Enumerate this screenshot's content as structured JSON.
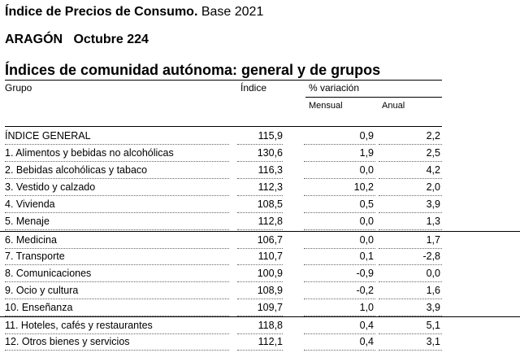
{
  "header": {
    "title_bold": "Índice de Precios de Consumo.",
    "title_rest": "Base 2021",
    "region": "ARAGÓN",
    "period": "Octubre 224",
    "subtitle": "Índices de comunidad autónoma: general y de grupos"
  },
  "columns": {
    "group": "Grupo",
    "index": "Índice",
    "variation": "% variación",
    "monthly": "Mensual",
    "annual": "Anual"
  },
  "rows": [
    {
      "name": "ÍNDICE GENERAL",
      "index": "115,9",
      "monthly": "0,9",
      "annual": "2,2"
    },
    {
      "name": "1. Alimentos y bebidas no alcohólicas",
      "index": "130,6",
      "monthly": "1,9",
      "annual": "2,5"
    },
    {
      "name": "2. Bebidas alcohólicas y tabaco",
      "index": "116,3",
      "monthly": "0,0",
      "annual": "4,2"
    },
    {
      "name": "3. Vestido y calzado",
      "index": "112,3",
      "monthly": "10,2",
      "annual": "2,0"
    },
    {
      "name": "4. Vivienda",
      "index": "108,5",
      "monthly": "0,5",
      "annual": "3,9"
    },
    {
      "name": "5. Menaje",
      "index": "112,8",
      "monthly": "0,0",
      "annual": "1,3"
    },
    {
      "name": "6. Medicina",
      "index": "106,7",
      "monthly": "0,0",
      "annual": "1,7"
    },
    {
      "name": "7. Transporte",
      "index": "110,7",
      "monthly": "0,1",
      "annual": "-2,8"
    },
    {
      "name": "8. Comunicaciones",
      "index": "100,9",
      "monthly": "-0,9",
      "annual": "0,0"
    },
    {
      "name": "9. Ocio y cultura",
      "index": "108,9",
      "monthly": "-0,2",
      "annual": "1,6"
    },
    {
      "name": "10. Enseñanza",
      "index": "109,7",
      "monthly": "1,0",
      "annual": "3,9"
    },
    {
      "name": "11. Hoteles, cafés y restaurantes",
      "index": "118,8",
      "monthly": "0,4",
      "annual": "5,1"
    },
    {
      "name": "12. Otros bienes y servicios",
      "index": "112,1",
      "monthly": "0,4",
      "annual": "3,1"
    }
  ]
}
